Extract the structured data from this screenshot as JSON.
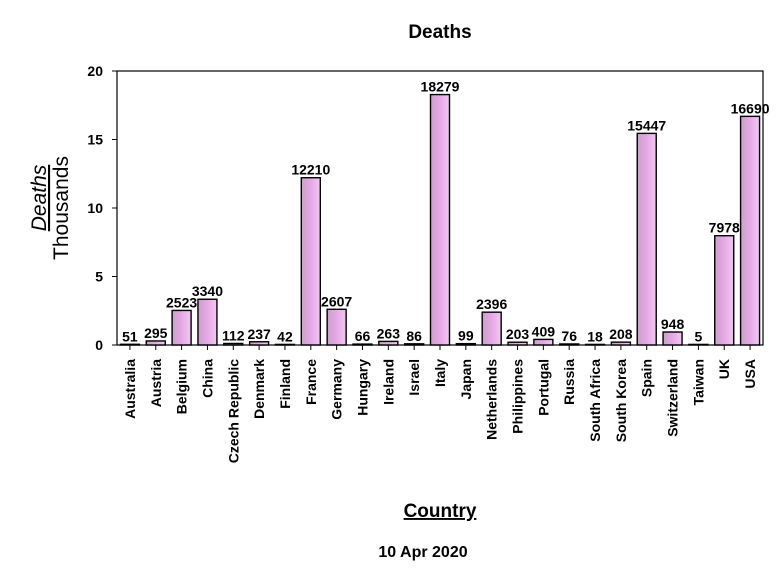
{
  "chart_data": {
    "type": "bar",
    "title": "Deaths",
    "xlabel": "Country",
    "ylabel": "Deaths",
    "ylabel_units": "Thousands",
    "subtitle": "10 Apr 2020",
    "ylim": [
      0,
      20
    ],
    "yticks": [
      "0",
      "5",
      "10",
      "15",
      "20"
    ],
    "categories": [
      "Australia",
      "Austria",
      "Belgium",
      "China",
      "Czech Republic",
      "Denmark",
      "Finland",
      "France",
      "Germany",
      "Hungary",
      "Ireland",
      "Israel",
      "Italy",
      "Japan",
      "Netherlands",
      "Philippines",
      "Portugal",
      "Russia",
      "South Africa",
      "South Korea",
      "Spain",
      "Switzerland",
      "Taiwan",
      "UK",
      "USA"
    ],
    "values": [
      51,
      295,
      2523,
      3340,
      112,
      237,
      42,
      12210,
      2607,
      66,
      263,
      86,
      18279,
      99,
      2396,
      203,
      409,
      76,
      18,
      208,
      15447,
      948,
      5,
      7978,
      16690
    ],
    "bar_color": "#df9fe2",
    "grid": false
  }
}
